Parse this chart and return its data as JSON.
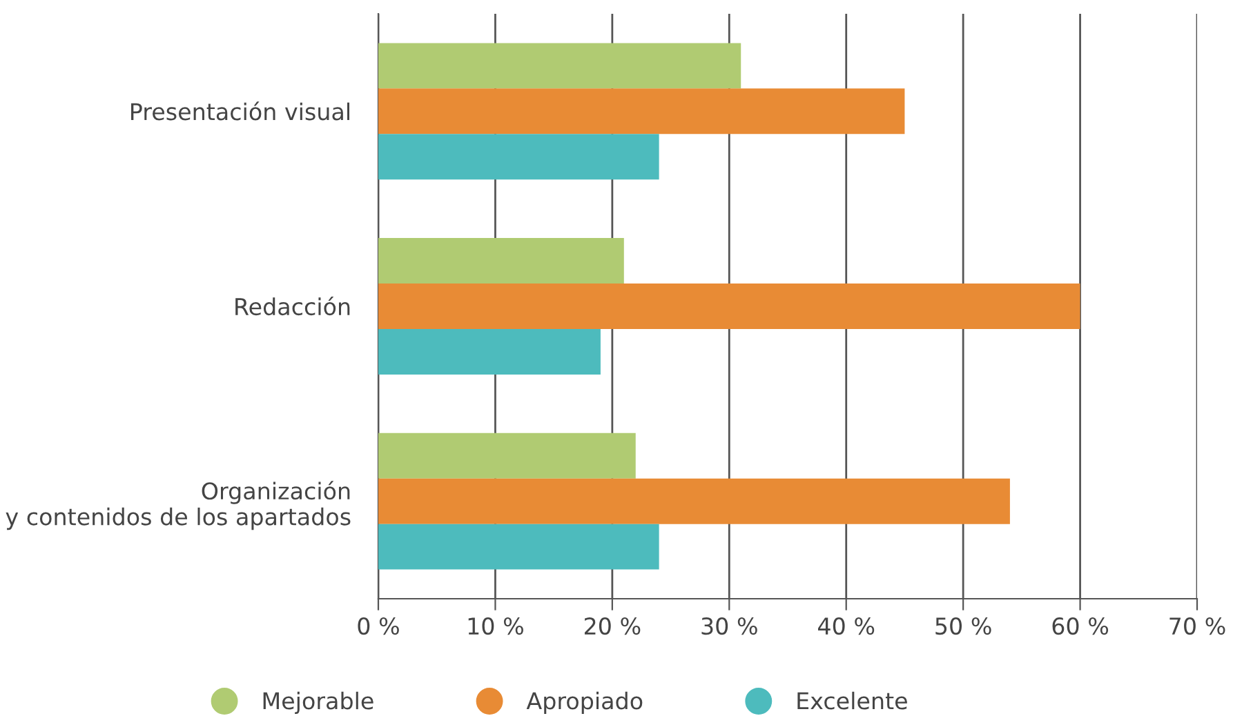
{
  "chart_data": {
    "type": "bar",
    "orientation": "horizontal",
    "categories": [
      "Presentación visual",
      "Redacción",
      "Organización\ny contenidos de los apartados"
    ],
    "series": [
      {
        "name": "Mejorable",
        "color": "#b0cb72",
        "values": [
          31,
          21,
          22
        ]
      },
      {
        "name": "Apropiado",
        "color": "#e88b35",
        "values": [
          45,
          60,
          54
        ]
      },
      {
        "name": "Excelente",
        "color": "#4dbbbd",
        "values": [
          24,
          19,
          24
        ]
      }
    ],
    "xlim": [
      0,
      70
    ],
    "xticks": [
      {
        "value": 0,
        "label": "0 %"
      },
      {
        "value": 10,
        "label": "10 %"
      },
      {
        "value": 20,
        "label": "20 %"
      },
      {
        "value": 30,
        "label": "30 %"
      },
      {
        "value": 40,
        "label": "40 %"
      },
      {
        "value": 50,
        "label": "50 %"
      },
      {
        "value": 60,
        "label": "60 %"
      },
      {
        "value": 70,
        "label": "70 %"
      }
    ],
    "grid": "x",
    "legend": "bottom",
    "marker": "circle"
  }
}
